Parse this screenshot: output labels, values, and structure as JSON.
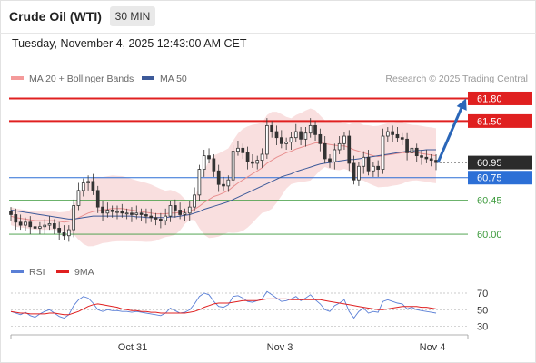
{
  "header": {
    "title": "Crude Oil (WTI)",
    "timeframe": "30 MIN",
    "datetime": "Tuesday, November 4, 2025 12:43:00 AM CET"
  },
  "legend": {
    "ma20_label": "MA 20 + Bollinger Bands",
    "ma50_label": "MA 50",
    "source": "Research © 2025 Trading Central"
  },
  "rsi_legend": {
    "rsi_label": "RSI",
    "ma_label": "9MA"
  },
  "colors": {
    "resistance": "#e02020",
    "pivot": "#2c6fd6",
    "support": "#3c9a3c",
    "bollinger": "#f7d4d4",
    "ma20": "#e88f8f",
    "ma50": "#3d5a99",
    "arrow": "#2a66b8",
    "rsi": "#5a7fd6",
    "rsi_ma": "#e02020"
  },
  "chart_data": [
    {
      "type": "candlestick",
      "x_ticks": [
        "Oct 31",
        "Nov 3",
        "Nov 4"
      ],
      "ylim": [
        59.7,
        61.95
      ],
      "levels": [
        {
          "value": 61.8,
          "label": "61.80",
          "kind": "resistance"
        },
        {
          "value": 61.5,
          "label": "61.50",
          "kind": "resistance"
        },
        {
          "value": 60.75,
          "label": "60.75",
          "kind": "pivot"
        },
        {
          "value": 60.45,
          "label": "60.45",
          "kind": "support"
        },
        {
          "value": 60.0,
          "label": "60.00",
          "kind": "support"
        }
      ],
      "last_price": {
        "value": 60.95,
        "label": "60.95"
      },
      "arrow": {
        "from": 60.95,
        "to": 61.8
      },
      "close_series": [
        60.26,
        60.16,
        60.12,
        60.16,
        60.1,
        60.08,
        60.1,
        60.12,
        60.14,
        60.08,
        60.02,
        59.98,
        60.06,
        60.38,
        60.58,
        60.68,
        60.7,
        60.58,
        60.36,
        60.28,
        60.32,
        60.3,
        60.3,
        60.28,
        60.28,
        60.26,
        60.28,
        60.26,
        60.24,
        60.22,
        60.2,
        60.18,
        60.24,
        60.38,
        60.32,
        60.26,
        60.28,
        60.36,
        60.52,
        60.86,
        61.04,
        61.0,
        60.84,
        60.66,
        60.64,
        60.72,
        61.1,
        61.14,
        61.08,
        60.96,
        60.94,
        60.98,
        61.06,
        61.44,
        61.36,
        61.28,
        61.2,
        61.22,
        61.28,
        61.36,
        61.26,
        61.34,
        61.44,
        61.32,
        61.2,
        61.0,
        60.96,
        61.12,
        61.2,
        61.3,
        60.94,
        60.72,
        60.9,
        61.02,
        60.84,
        60.9,
        60.86,
        61.3,
        61.36,
        61.32,
        61.28,
        61.26,
        61.08,
        61.14,
        61.04,
        61.02,
        61.0,
        60.98,
        60.95
      ],
      "ma20": [
        60.24,
        60.22,
        60.21,
        60.2,
        60.19,
        60.18,
        60.18,
        60.18,
        60.18,
        60.18,
        60.17,
        60.16,
        60.17,
        60.19,
        60.22,
        60.25,
        60.28,
        60.3,
        60.31,
        60.32,
        60.33,
        60.34,
        60.34,
        60.34,
        60.33,
        60.32,
        60.31,
        60.3,
        60.29,
        60.28,
        60.27,
        60.27,
        60.27,
        60.28,
        60.28,
        60.29,
        60.3,
        60.31,
        60.33,
        60.37,
        60.42,
        60.46,
        60.5,
        60.52,
        60.55,
        60.58,
        60.63,
        60.68,
        60.72,
        60.76,
        60.8,
        60.84,
        60.88,
        60.94,
        60.98,
        61.02,
        61.05,
        61.08,
        61.1,
        61.13,
        61.15,
        61.17,
        61.19,
        61.21,
        61.21,
        61.2,
        61.19,
        61.18,
        61.17,
        61.17,
        61.15,
        61.12,
        61.1,
        61.08,
        61.06,
        61.04,
        61.03,
        61.04,
        61.05,
        61.06,
        61.07,
        61.08,
        61.08,
        61.08,
        61.08,
        61.07,
        61.06,
        61.05,
        61.04
      ],
      "ma50": [
        60.32,
        60.31,
        60.3,
        60.29,
        60.28,
        60.27,
        60.26,
        60.25,
        60.24,
        60.23,
        60.22,
        60.21,
        60.2,
        60.2,
        60.21,
        60.22,
        60.23,
        60.24,
        60.24,
        60.24,
        60.24,
        60.24,
        60.24,
        60.24,
        60.24,
        60.24,
        60.23,
        60.23,
        60.22,
        60.22,
        60.22,
        60.22,
        60.22,
        60.23,
        60.23,
        60.24,
        60.25,
        60.26,
        60.28,
        60.3,
        60.33,
        60.35,
        60.37,
        60.39,
        60.41,
        60.43,
        60.46,
        60.49,
        60.52,
        60.55,
        60.58,
        60.61,
        60.64,
        60.67,
        60.7,
        60.73,
        60.76,
        60.78,
        60.8,
        60.83,
        60.85,
        60.87,
        60.89,
        60.91,
        60.93,
        60.94,
        60.95,
        60.96,
        60.97,
        60.98,
        60.99,
        60.99,
        61.0,
        61.01,
        61.02,
        61.03,
        61.04,
        61.05,
        61.06,
        61.07,
        61.08,
        61.09,
        61.1,
        61.1,
        61.11,
        61.11,
        61.12,
        61.12,
        61.12
      ]
    },
    {
      "type": "line",
      "name_labels": [
        "RSI",
        "9MA"
      ],
      "y_ticks": [
        70,
        50,
        30
      ],
      "ylim": [
        22,
        82
      ],
      "rsi": [
        48,
        46,
        44,
        47,
        43,
        41,
        45,
        48,
        50,
        46,
        42,
        40,
        44,
        55,
        62,
        66,
        64,
        58,
        50,
        48,
        50,
        49,
        49,
        48,
        48,
        47,
        48,
        47,
        46,
        45,
        44,
        43,
        46,
        52,
        49,
        46,
        47,
        50,
        57,
        66,
        70,
        68,
        60,
        54,
        53,
        56,
        66,
        67,
        64,
        60,
        59,
        61,
        63,
        72,
        68,
        64,
        60,
        61,
        63,
        66,
        61,
        64,
        68,
        62,
        57,
        50,
        48,
        55,
        58,
        62,
        48,
        40,
        48,
        52,
        46,
        48,
        47,
        60,
        62,
        60,
        58,
        57,
        51,
        53,
        50,
        49,
        48,
        47,
        46
      ],
      "rsi_ma": [
        48,
        47,
        46,
        46,
        45,
        45,
        45,
        45,
        46,
        46,
        45,
        44,
        44,
        46,
        48,
        51,
        54,
        56,
        57,
        56,
        55,
        54,
        53,
        51,
        50,
        49,
        49,
        48,
        48,
        47,
        47,
        46,
        46,
        46,
        46,
        46,
        46,
        47,
        48,
        50,
        53,
        55,
        57,
        58,
        58,
        58,
        59,
        60,
        61,
        61,
        61,
        61,
        62,
        63,
        63,
        63,
        63,
        63,
        62,
        62,
        62,
        62,
        62,
        62,
        62,
        61,
        60,
        59,
        58,
        57,
        56,
        55,
        54,
        53,
        52,
        51,
        50,
        50,
        51,
        52,
        53,
        54,
        54,
        54,
        54,
        53,
        53,
        52,
        51
      ]
    }
  ]
}
